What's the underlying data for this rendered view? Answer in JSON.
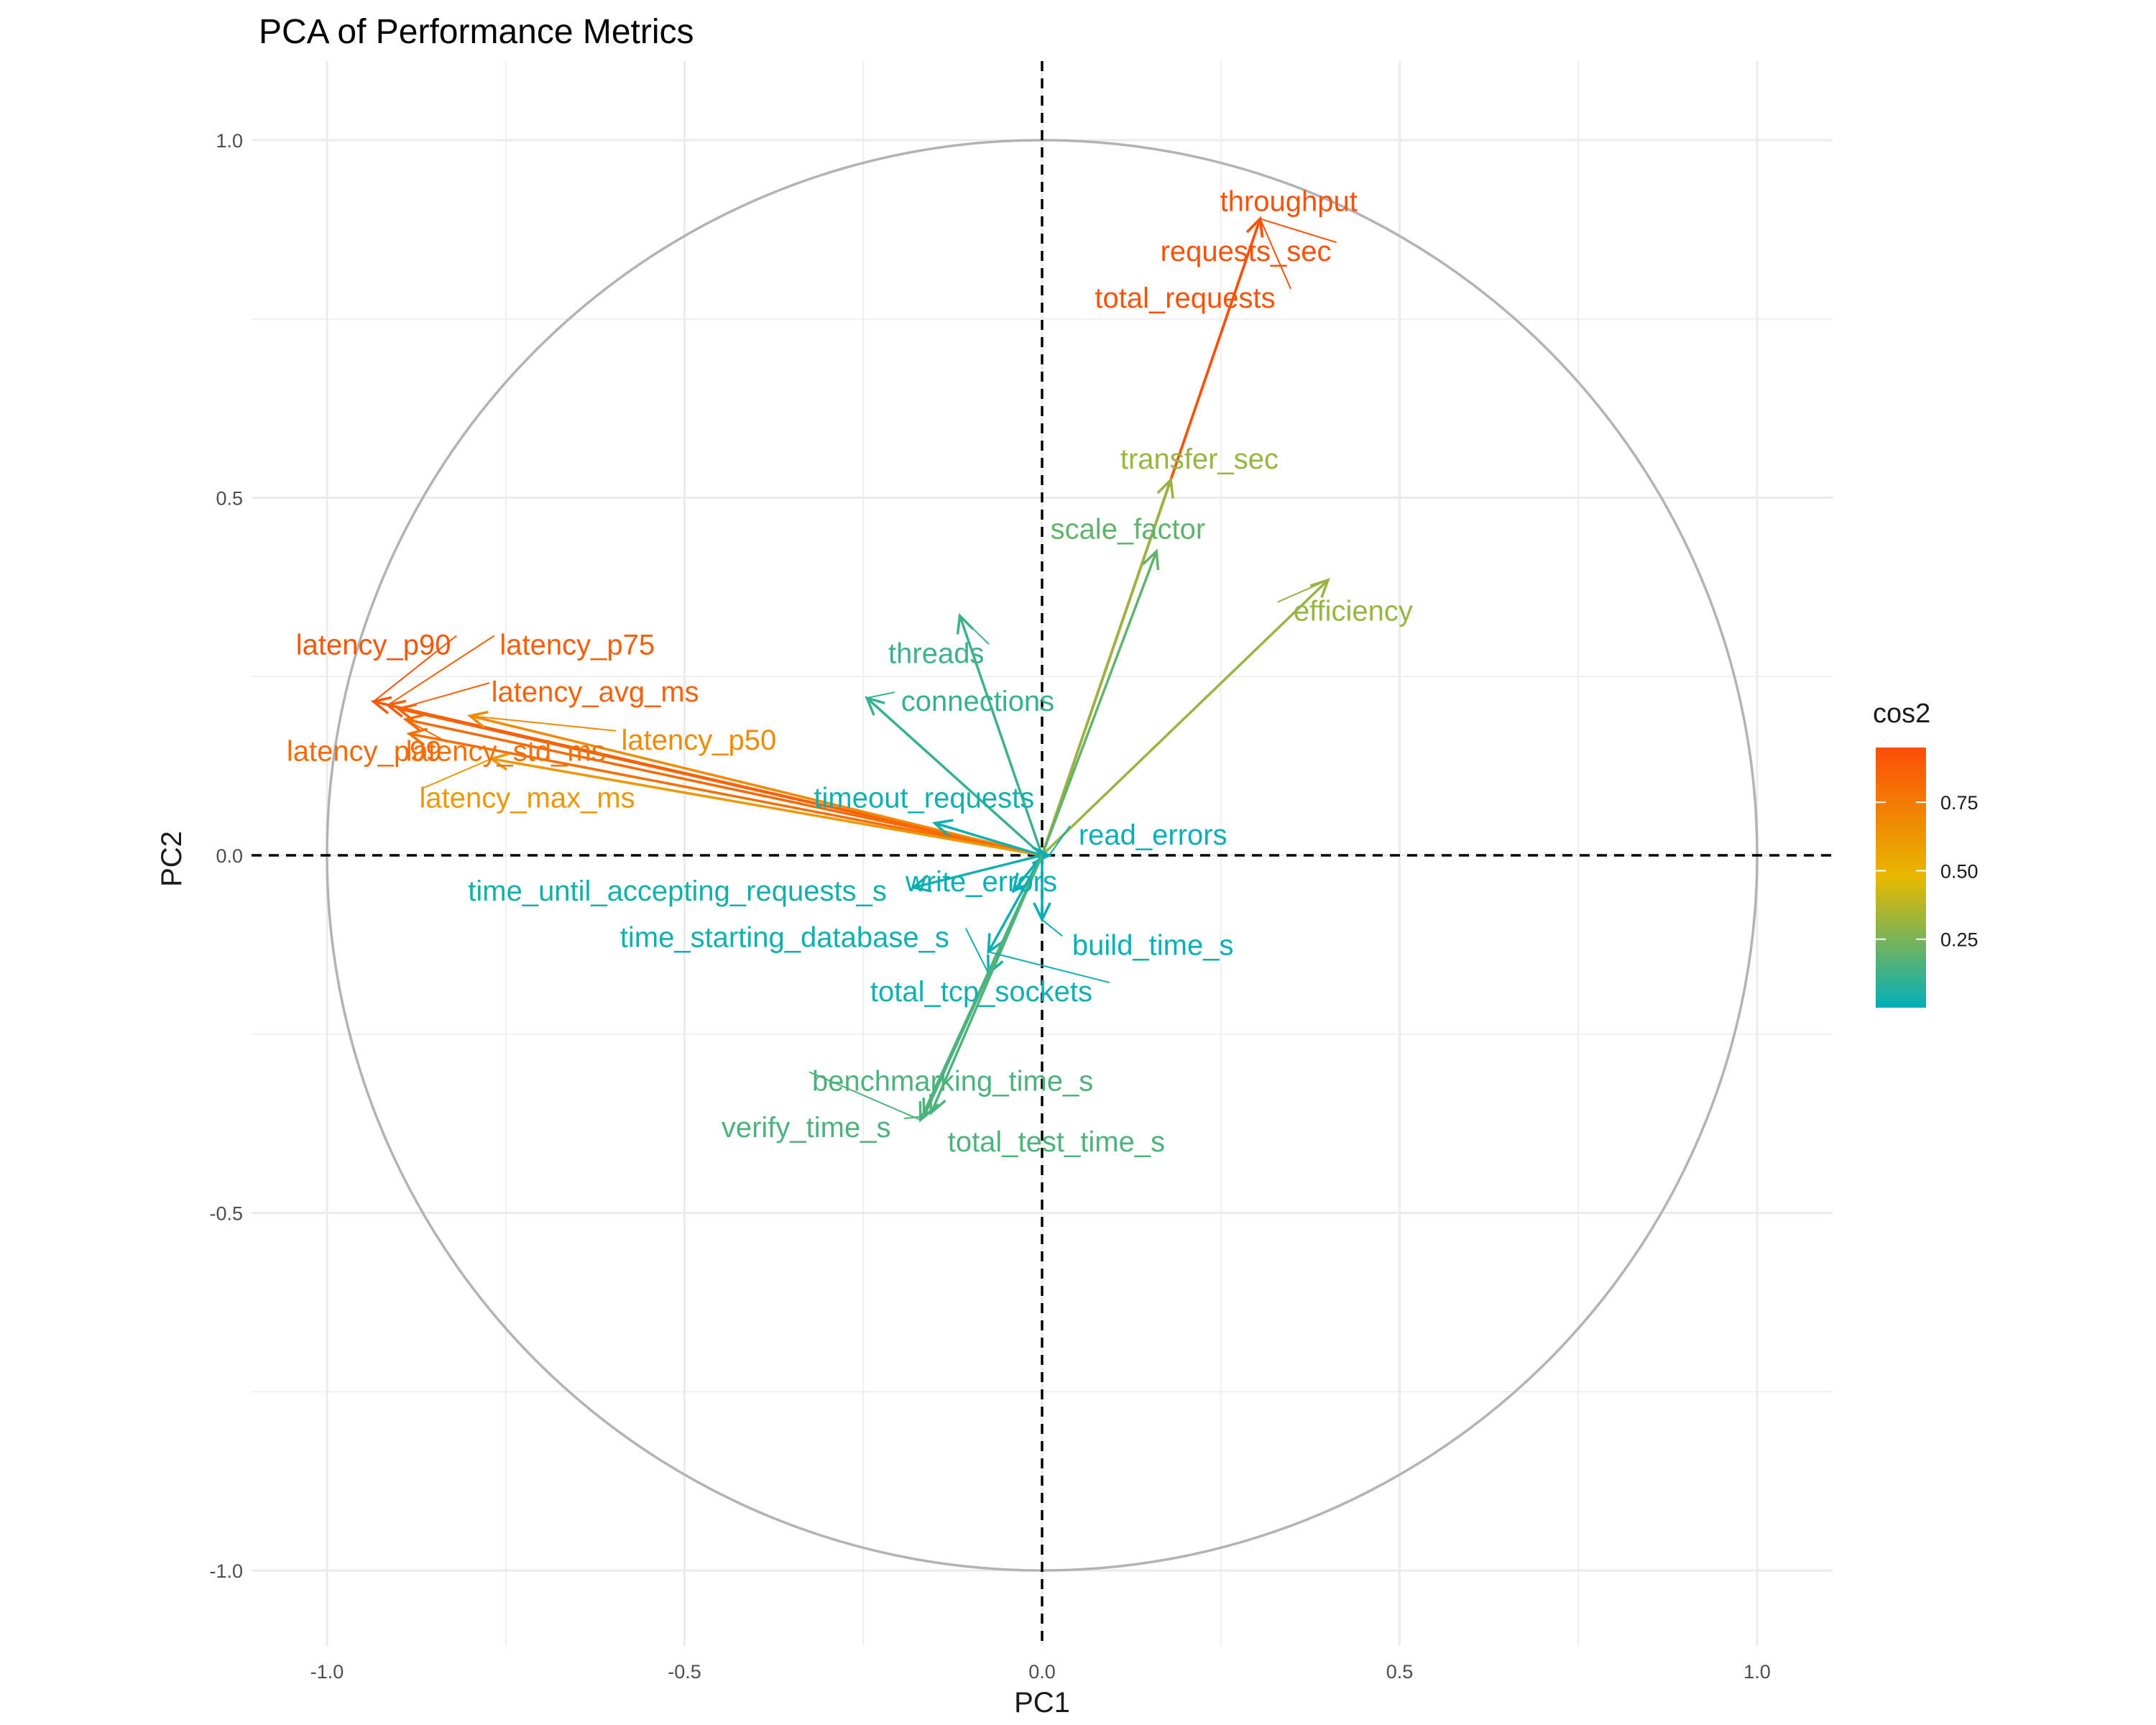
{
  "chart_data": {
    "type": "scatter",
    "subtype": "pca-variable-correlation-circle",
    "title": "PCA of Performance Metrics",
    "xlabel": "PC1",
    "ylabel": "PC2",
    "xlim": [
      -1.1,
      1.1
    ],
    "ylim": [
      -1.1,
      1.1
    ],
    "x_ticks": [
      -1.0,
      -0.5,
      0.0,
      0.5,
      1.0
    ],
    "x_tick_labels": [
      "-1.0",
      "-0.5",
      "0.0",
      "0.5",
      "1.0"
    ],
    "y_ticks": [
      1.0,
      0.5,
      0.0,
      -0.5,
      -1.0
    ],
    "y_tick_labels": [
      "1.0",
      "0.5",
      "0.0",
      "-0.5",
      "-1.0"
    ],
    "grid": true,
    "unit_circle": true,
    "reference_lines": "dashed at x=0 and y=0",
    "legend": {
      "title": "cos2",
      "placement": "right",
      "type": "gradient",
      "ticks": [
        "0.25",
        "0.50",
        "0.75"
      ],
      "tick_values": [
        0.25,
        0.5,
        0.75
      ],
      "range": [
        0.0,
        0.95
      ],
      "colors": [
        "#00AFBB",
        "#E7B800",
        "#FC4E07"
      ]
    },
    "variables": [
      {
        "name": "throughput",
        "x": 0.305,
        "y": 0.89,
        "cos2": 0.93,
        "label_x": 0.345,
        "label_y": 0.915
      },
      {
        "name": "requests_sec",
        "x": 0.305,
        "y": 0.89,
        "cos2": 0.93,
        "label_x": 0.285,
        "label_y": 0.845
      },
      {
        "name": "total_requests",
        "x": 0.305,
        "y": 0.89,
        "cos2": 0.93,
        "label_x": 0.2,
        "label_y": 0.78
      },
      {
        "name": "transfer_sec",
        "x": 0.18,
        "y": 0.525,
        "cos2": 0.31,
        "label_x": 0.22,
        "label_y": 0.555
      },
      {
        "name": "scale_factor",
        "x": 0.16,
        "y": 0.425,
        "cos2": 0.2,
        "label_x": 0.12,
        "label_y": 0.457
      },
      {
        "name": "efficiency",
        "x": 0.4,
        "y": 0.385,
        "cos2": 0.31,
        "label_x": 0.435,
        "label_y": 0.342
      },
      {
        "name": "threads",
        "x": -0.115,
        "y": 0.335,
        "cos2": 0.13,
        "label_x": -0.148,
        "label_y": 0.283
      },
      {
        "name": "connections",
        "x": -0.245,
        "y": 0.22,
        "cos2": 0.11,
        "label_x": -0.09,
        "label_y": 0.216
      },
      {
        "name": "latency_p90",
        "x": -0.935,
        "y": 0.215,
        "cos2": 0.92,
        "label_x": -0.935,
        "label_y": 0.295
      },
      {
        "name": "latency_p75",
        "x": -0.915,
        "y": 0.21,
        "cos2": 0.88,
        "label_x": -0.65,
        "label_y": 0.295
      },
      {
        "name": "latency_avg_ms",
        "x": -0.9,
        "y": 0.205,
        "cos2": 0.86,
        "label_x": -0.625,
        "label_y": 0.229
      },
      {
        "name": "latency_p50",
        "x": -0.8,
        "y": 0.195,
        "cos2": 0.68,
        "label_x": -0.48,
        "label_y": 0.162
      },
      {
        "name": "latency_p99",
        "x": -0.89,
        "y": 0.19,
        "cos2": 0.83,
        "label_x": -0.948,
        "label_y": 0.146
      },
      {
        "name": "latency_std_ms",
        "x": -0.885,
        "y": 0.17,
        "cos2": 0.8,
        "label_x": -0.75,
        "label_y": 0.146
      },
      {
        "name": "latency_max_ms",
        "x": -0.77,
        "y": 0.135,
        "cos2": 0.62,
        "label_x": -0.72,
        "label_y": 0.081
      },
      {
        "name": "timeout_requests",
        "x": -0.15,
        "y": 0.045,
        "cos2": 0.03,
        "label_x": -0.165,
        "label_y": 0.081
      },
      {
        "name": "read_errors",
        "x": 0.01,
        "y": 0.0,
        "cos2": 0.01,
        "label_x": 0.155,
        "label_y": 0.029
      },
      {
        "name": "write_errors",
        "x": -0.04,
        "y": -0.05,
        "cos2": 0.01,
        "label_x": -0.085,
        "label_y": -0.036
      },
      {
        "name": "time_until_accepting_requests_s",
        "x": -0.18,
        "y": -0.045,
        "cos2": 0.04,
        "label_x": -0.51,
        "label_y": -0.049
      },
      {
        "name": "time_starting_database_s",
        "x": -0.075,
        "y": -0.165,
        "cos2": 0.03,
        "label_x": -0.36,
        "label_y": -0.114
      },
      {
        "name": "build_time_s",
        "x": 0.0,
        "y": -0.09,
        "cos2": 0.01,
        "label_x": 0.155,
        "label_y": -0.125
      },
      {
        "name": "total_tcp_sockets",
        "x": -0.075,
        "y": -0.135,
        "cos2": 0.03,
        "label_x": -0.085,
        "label_y": -0.19
      },
      {
        "name": "benchmarking_time_s",
        "x": -0.17,
        "y": -0.37,
        "cos2": 0.16,
        "label_x": -0.125,
        "label_y": -0.315
      },
      {
        "name": "verify_time_s",
        "x": -0.165,
        "y": -0.365,
        "cos2": 0.16,
        "label_x": -0.33,
        "label_y": -0.38
      },
      {
        "name": "total_test_time_s",
        "x": -0.155,
        "y": -0.36,
        "cos2": 0.16,
        "label_x": 0.02,
        "label_y": -0.4
      }
    ]
  }
}
